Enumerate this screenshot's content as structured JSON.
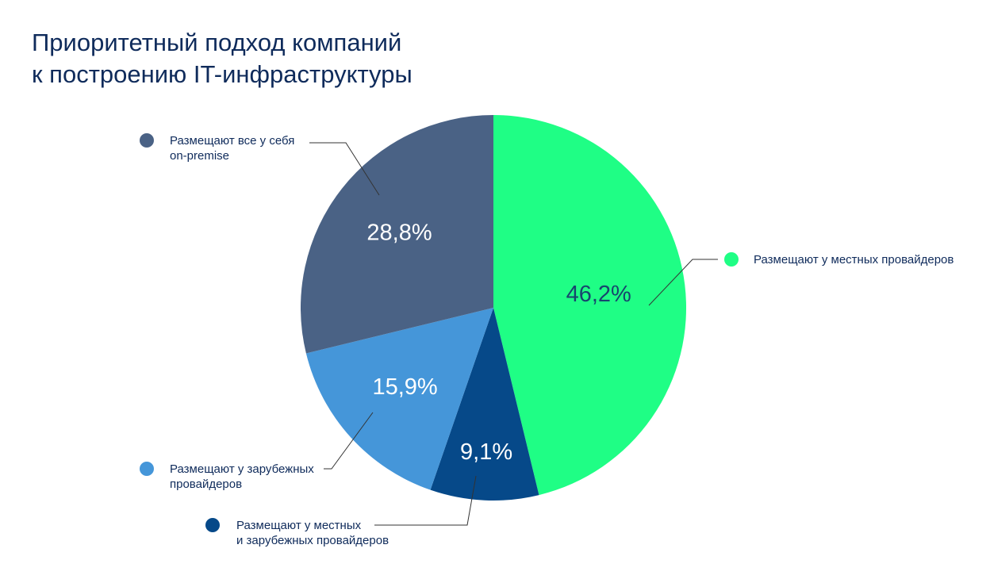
{
  "chart_data": {
    "type": "pie",
    "title_lines": [
      "Приоритетный подход компаний",
      "к построению IT-инфраструктуры"
    ],
    "slices": [
      {
        "value": 46.2,
        "label": "46,2%",
        "legend_lines": [
          "Размещают у местных провайдеров"
        ],
        "color": "#1ffe85",
        "label_color": "#18456e"
      },
      {
        "value": 9.1,
        "label": "9,1%",
        "legend_lines": [
          "Размещают у местных",
          "и зарубежных провайдеров"
        ],
        "color": "#064989",
        "label_color": "#ffffff"
      },
      {
        "value": 15.9,
        "label": "15,9%",
        "legend_lines": [
          "Размещают у зарубежных",
          "провайдеров"
        ],
        "color": "#4596d9",
        "label_color": "#ffffff"
      },
      {
        "value": 28.8,
        "label": "28,8%",
        "legend_lines": [
          "Размещают все у себя",
          "on-premise"
        ],
        "color": "#4a6285",
        "label_color": "#ffffff"
      }
    ],
    "start_angle_deg": 0,
    "direction": "clockwise",
    "legend_text_color": "#0f2b5b",
    "leader_line_color": "#333333"
  }
}
